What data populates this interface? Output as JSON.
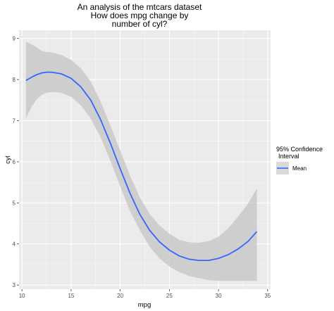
{
  "chart_data": {
    "type": "line",
    "title": [
      "An analysis of the mtcars dataset",
      "How does mpg change by",
      "number of cyl?"
    ],
    "xlabel": "mpg",
    "ylabel": "cyl",
    "xlim": [
      9.7,
      35.3
    ],
    "ylim": [
      2.9,
      9.2
    ],
    "xticks": [
      10,
      15,
      20,
      25,
      30,
      35
    ],
    "yticks": [
      3,
      4,
      5,
      6,
      7,
      8,
      9
    ],
    "grid": true,
    "legend": {
      "title": [
        "95% Confidence",
        "Interval"
      ],
      "entries": [
        "Mean"
      ],
      "placement": "right"
    },
    "series": [
      {
        "name": "Mean",
        "color": "#3366FF",
        "x": [
          10.4,
          11.0,
          11.5,
          12.0,
          12.5,
          13.0,
          14.0,
          15.0,
          16.0,
          17.0,
          18.0,
          19.0,
          20.0,
          21.0,
          22.0,
          23.0,
          24.0,
          25.0,
          26.0,
          27.0,
          28.0,
          29.0,
          30.0,
          31.0,
          32.0,
          33.0,
          33.9
        ],
        "y": [
          7.98,
          8.06,
          8.12,
          8.16,
          8.18,
          8.18,
          8.14,
          8.03,
          7.82,
          7.5,
          7.03,
          6.45,
          5.83,
          5.23,
          4.72,
          4.33,
          4.05,
          3.85,
          3.71,
          3.63,
          3.6,
          3.6,
          3.65,
          3.74,
          3.88,
          4.06,
          4.3
        ],
        "lower": [
          7.05,
          7.35,
          7.52,
          7.63,
          7.68,
          7.7,
          7.68,
          7.58,
          7.37,
          7.05,
          6.6,
          6.02,
          5.4,
          4.8,
          4.33,
          3.93,
          3.65,
          3.45,
          3.32,
          3.22,
          3.17,
          3.12,
          3.1,
          3.1,
          3.1,
          3.1,
          3.1
        ],
        "upper": [
          8.92,
          8.85,
          8.78,
          8.7,
          8.67,
          8.66,
          8.6,
          8.48,
          8.27,
          7.95,
          7.47,
          6.88,
          6.27,
          5.66,
          5.13,
          4.73,
          4.45,
          4.25,
          4.1,
          4.04,
          4.03,
          4.07,
          4.18,
          4.38,
          4.67,
          4.98,
          5.35
        ]
      }
    ]
  }
}
